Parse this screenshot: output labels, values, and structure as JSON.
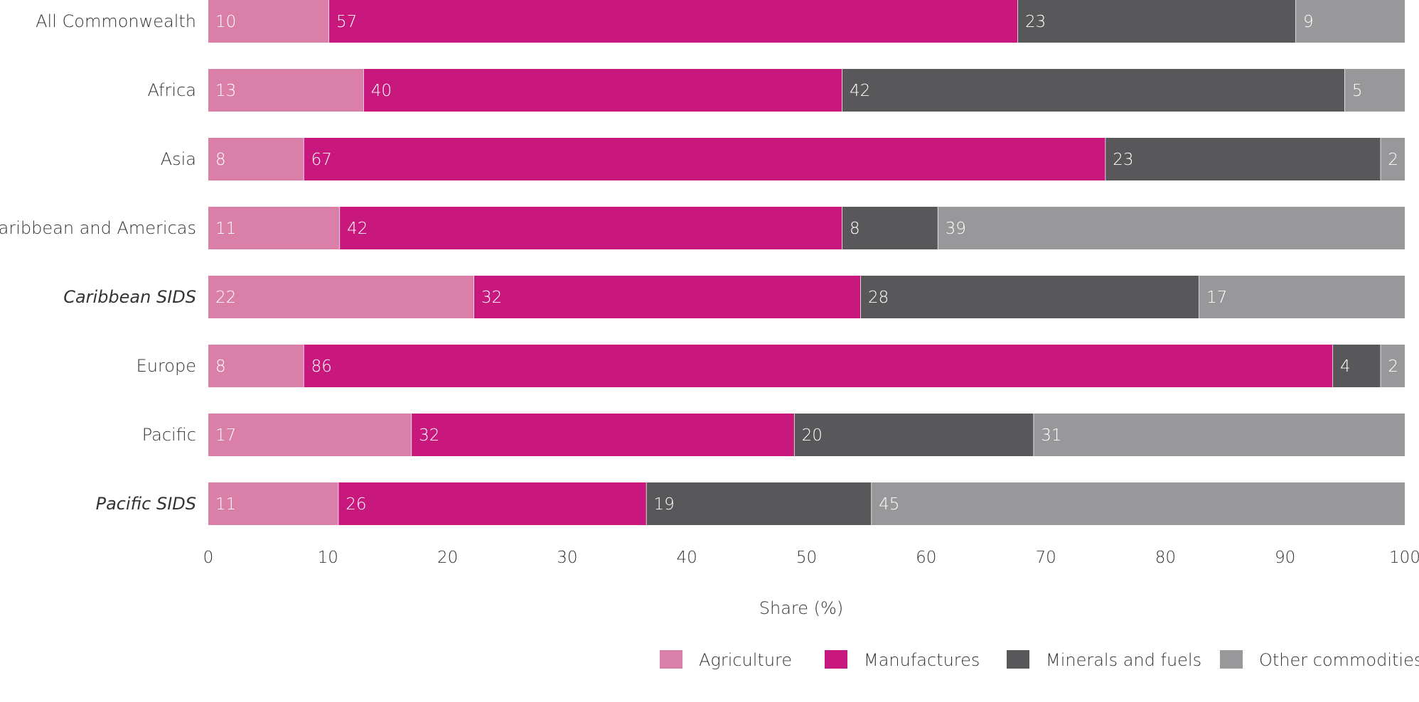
{
  "chart_data": {
    "type": "bar",
    "orientation": "horizontal",
    "stacked": true,
    "categories": [
      "All Commonwealth",
      "Africa",
      "Asia",
      "Caribbean and Americas",
      "Caribbean SIDS",
      "Europe",
      "Pacific",
      "Pacific SIDS"
    ],
    "italic_categories": [
      "Caribbean SIDS",
      "Pacific SIDS"
    ],
    "series": [
      {
        "name": "Agriculture",
        "color": "#d97fa8",
        "values": [
          10,
          13,
          8,
          11,
          22,
          8,
          17,
          11
        ]
      },
      {
        "name": "Manufactures",
        "color": "#c9187d",
        "values": [
          57,
          40,
          67,
          42,
          32,
          86,
          32,
          26
        ]
      },
      {
        "name": "Minerals and fuels",
        "color": "#58585a",
        "values": [
          23,
          42,
          23,
          8,
          28,
          4,
          20,
          19
        ]
      },
      {
        "name": "Other commodities",
        "color": "#98989b",
        "values": [
          9,
          5,
          2,
          39,
          17,
          2,
          31,
          45
        ]
      }
    ],
    "xlabel": "Share (%)",
    "xlim": [
      0,
      100
    ],
    "xticks": [
      0,
      10,
      20,
      30,
      40,
      50,
      60,
      70,
      80,
      90,
      100
    ],
    "grid": false,
    "legend_position": "bottom-right"
  }
}
